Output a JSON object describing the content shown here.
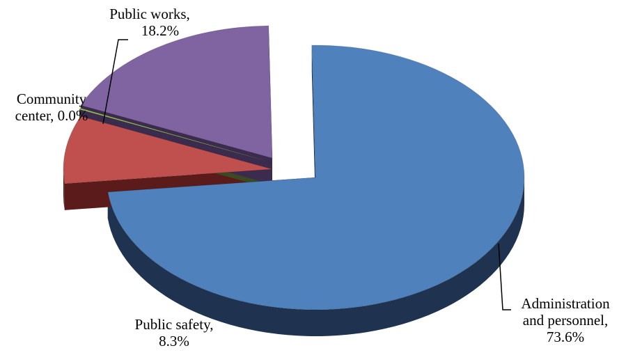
{
  "chart_data": {
    "type": "pie",
    "style": "3d-exploded",
    "title": "",
    "slices": [
      {
        "key": "admin",
        "label_line1": "Administration",
        "label_line2": "and personnel,",
        "value_text": "73.6%",
        "value": 73.6,
        "color": "#4f81bd",
        "side_color": "#1f3350"
      },
      {
        "key": "safety",
        "label_line1": "Public safety,",
        "label_line2": "",
        "value_text": "8.3%",
        "value": 8.3,
        "color": "#c0504d",
        "side_color": "#5a1b1a"
      },
      {
        "key": "community",
        "label_line1": "Community",
        "label_line2": "center,",
        "value_text": "0.0%",
        "value": 0.0,
        "color": "#9bbb59",
        "side_color": "#3b4a22"
      },
      {
        "key": "works",
        "label_line1": "Public works,",
        "label_line2": "",
        "value_text": "18.2%",
        "value": 18.2,
        "color": "#8064a2",
        "side_color": "#3b2c4f"
      }
    ]
  }
}
